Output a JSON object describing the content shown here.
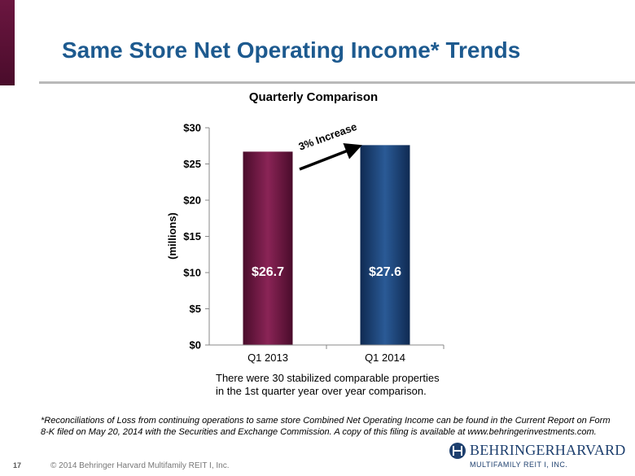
{
  "slide": {
    "title": "Same Store Net Operating Income* Trends",
    "note": "There were 30 stabilized comparable properties in the 1st quarter year over year comparison.",
    "footnote": "*Reconciliations of Loss from continuing operations to same store Combined Net Operating Income can be found in the Current Report on Form 8-K filed on May 20, 2014 with the Securities and Exchange Commission. A copy of this filing is available at www.behringerinvestments.com.",
    "page_number": "17",
    "copyright": "© 2014 Behringer Harvard Multifamily REIT I, Inc.",
    "logo_word": "BEHRINGERHARVARD",
    "logo_sub": "MULTIFAMILY REIT I, INC.",
    "colors": {
      "title": "#1d5a8f",
      "accent": "#6b1640",
      "rule": "#b9b9b9"
    }
  },
  "chart_data": {
    "type": "bar",
    "title": "Quarterly Comparison",
    "ylabel": "(millions)",
    "categories": [
      "Q1 2013",
      "Q1 2014"
    ],
    "values": [
      26.7,
      27.6
    ],
    "data_labels": [
      "$26.7",
      "$27.6"
    ],
    "ylim": [
      0,
      30
    ],
    "yticks": [
      0,
      5,
      10,
      15,
      20,
      25,
      30
    ],
    "ytick_labels": [
      "$0",
      "$5",
      "$10",
      "$15",
      "$20",
      "$25",
      "$30"
    ],
    "bar_colors": [
      "#6b1640",
      "#1b3e72"
    ],
    "annotation": "3% Increase",
    "grid": false,
    "legend": "none"
  }
}
